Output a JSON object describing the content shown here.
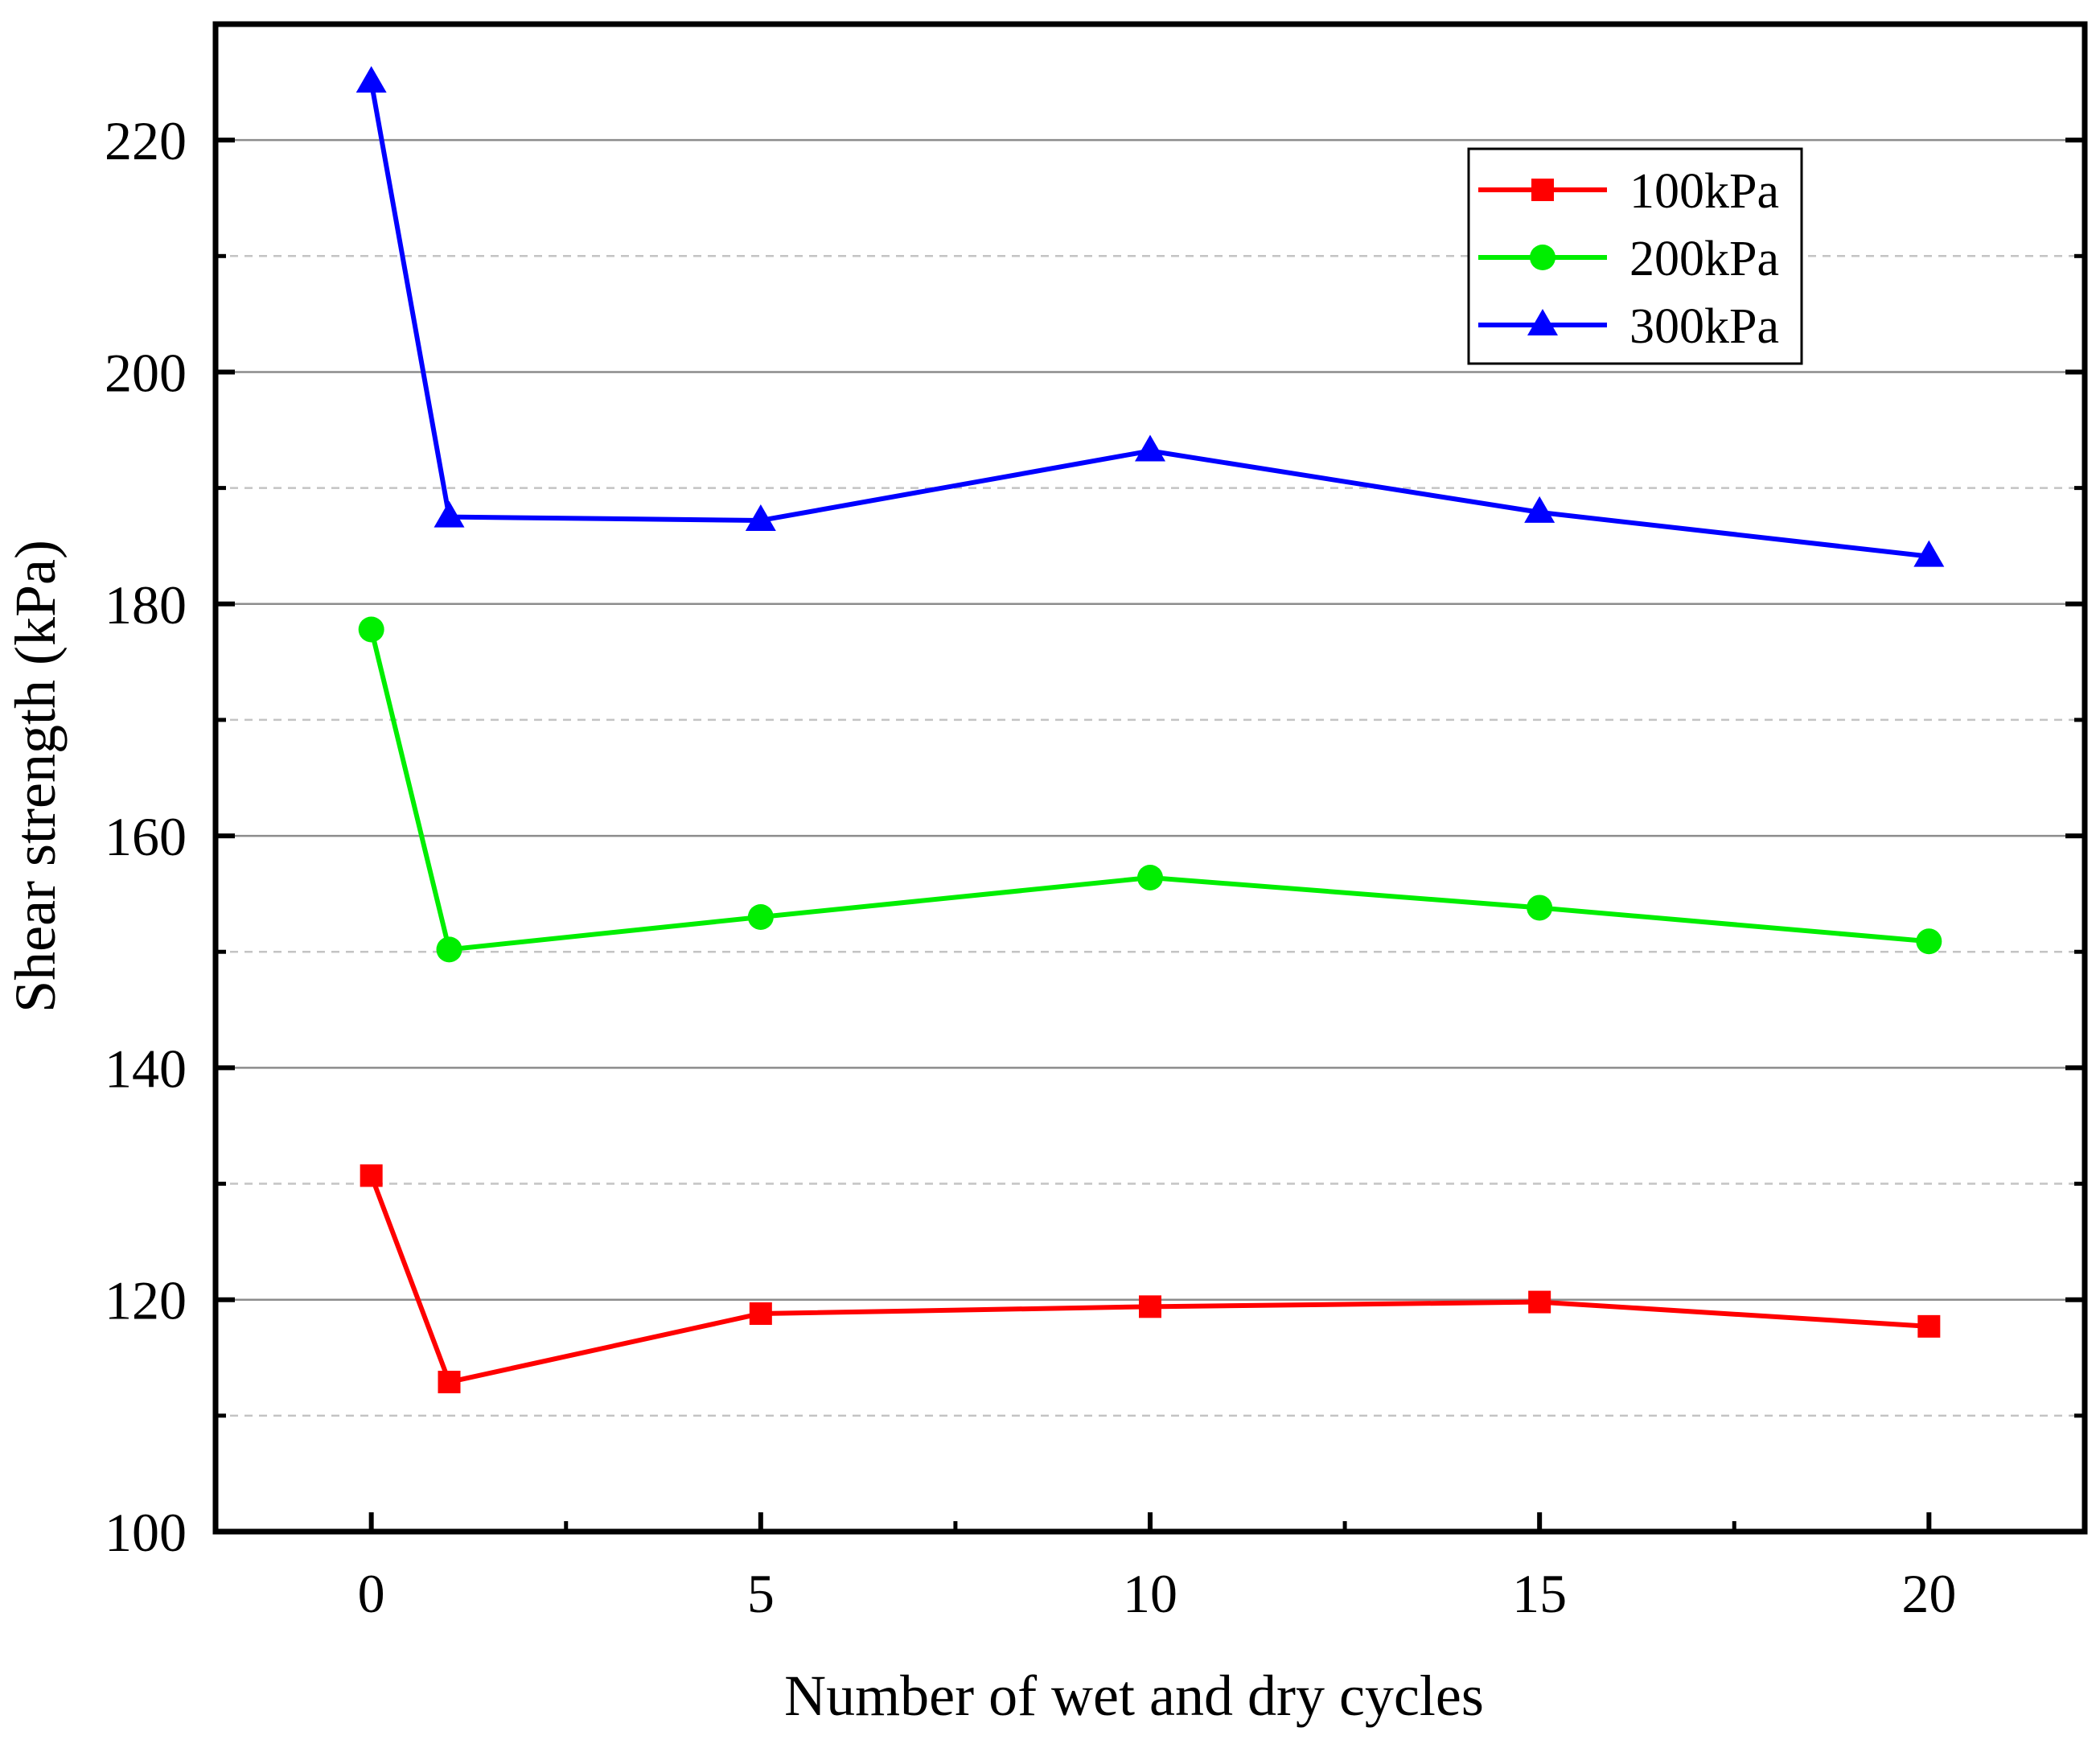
{
  "chart_data": {
    "type": "line",
    "title": "",
    "xlabel": "Number of wet and dry cycles",
    "ylabel": "Shear strength  (kPa)",
    "x": [
      0,
      1,
      5,
      10,
      15,
      20
    ],
    "xlim": [
      -2,
      22
    ],
    "ylim": [
      100,
      230
    ],
    "xticks": [
      0,
      5,
      10,
      15,
      20
    ],
    "xtick_labels": [
      "0",
      "5",
      "10",
      "15",
      "20"
    ],
    "yticks": [
      100,
      120,
      140,
      160,
      180,
      200,
      220
    ],
    "ytick_labels": [
      "100",
      "120",
      "140",
      "160",
      "180",
      "200",
      "220"
    ],
    "grid": {
      "major_solid": true,
      "minor_dashed": true
    },
    "legend_position": "top-right",
    "series": [
      {
        "name": "100kPa",
        "color": "#ff0000",
        "marker": "square",
        "values": [
          130.7,
          112.9,
          118.8,
          119.4,
          119.8,
          117.7
        ]
      },
      {
        "name": "200kPa",
        "color": "#00ee00",
        "marker": "circle",
        "values": [
          177.8,
          150.2,
          153.0,
          156.4,
          153.8,
          150.9
        ]
      },
      {
        "name": "300kPa",
        "color": "#0000ff",
        "marker": "triangle",
        "values": [
          225.0,
          187.5,
          187.2,
          193.2,
          187.9,
          184.1
        ]
      }
    ]
  }
}
